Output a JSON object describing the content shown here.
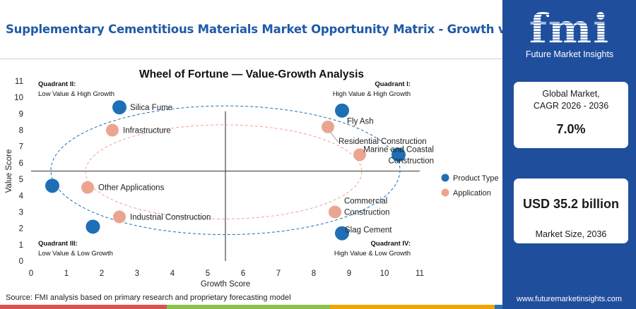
{
  "report_title": "Supplementary Cementitious Materials Market Opportunity Matrix - Growth vs Value",
  "source_text": "Source: FMI analysis based on primary research and proprietary forecasting model",
  "brand": {
    "name": "fmi",
    "tagline": "Future Market Insights",
    "website": "www.futuremarketinsights.com"
  },
  "colors": {
    "primary_blue": "#1f4e9c",
    "title_blue": "#1f5aa6",
    "product_type": "#1e6fb5",
    "application": "#eba58f"
  },
  "stats": {
    "cagr_label_line1": "Global Market,",
    "cagr_label_line2": "CAGR 2026 - 2036",
    "cagr_value": "7.0%",
    "size_value": "USD 35.2 billion",
    "size_label": "Market Size, 2036"
  },
  "bottom_bar_colors": [
    "#d9534f",
    "#8bc34a",
    "#f0a500",
    "#2e6fb5"
  ],
  "chart_data": {
    "type": "scatter",
    "title": "Wheel of Fortune — Value-Growth Analysis",
    "xlabel": "Growth Score",
    "ylabel": "Value Score",
    "xlim": [
      0,
      11
    ],
    "ylim": [
      0,
      11
    ],
    "xticks": [
      0,
      1,
      2,
      3,
      4,
      5,
      6,
      7,
      8,
      9,
      10,
      11
    ],
    "yticks": [
      0,
      1,
      2,
      3,
      4,
      5,
      6,
      7,
      8,
      9,
      10,
      11
    ],
    "divider_x": 5.5,
    "divider_y": 5.5,
    "quadrants": [
      {
        "name": "Quadrant II:",
        "desc": "Low Value & High Growth",
        "position": "top-left"
      },
      {
        "name": "Quadrant I:",
        "desc": "High Value & High Growth",
        "position": "top-right"
      },
      {
        "name": "Quadrant III:",
        "desc": "Low Value & Low Growth",
        "position": "bottom-left"
      },
      {
        "name": "Quadrant IV:",
        "desc": "High Value & Low Growth",
        "position": "bottom-right"
      }
    ],
    "legend": [
      {
        "name": "Product Type",
        "color": "#1e6fb5"
      },
      {
        "name": "Application",
        "color": "#eba58f"
      }
    ],
    "legend_position": "right",
    "series": [
      {
        "name": "Product Type",
        "color": "#1e6fb5",
        "points": [
          {
            "label": [
              "Silica Fume"
            ],
            "x": 2.5,
            "y": 9.4
          },
          {
            "label": [
              "Fly Ash"
            ],
            "x": 8.8,
            "y": 9.2
          },
          {
            "label": [
              "Marine and Coastal",
              "Construction"
            ],
            "x": 10.4,
            "y": 6.5
          },
          {
            "label": [
              ""
            ],
            "x": 0.6,
            "y": 4.6
          },
          {
            "label": [
              ""
            ],
            "x": 1.75,
            "y": 2.1
          },
          {
            "label": [
              "Slag Cement"
            ],
            "x": 8.8,
            "y": 1.7
          }
        ]
      },
      {
        "name": "Application",
        "color": "#eba58f",
        "points": [
          {
            "label": [
              "Infrastructure"
            ],
            "x": 2.3,
            "y": 8.0
          },
          {
            "label": [
              "Residential Construction"
            ],
            "x": 8.4,
            "y": 8.2
          },
          {
            "label": [
              ""
            ],
            "x": 9.3,
            "y": 6.5
          },
          {
            "label": [
              "Other Applications"
            ],
            "x": 1.6,
            "y": 4.5
          },
          {
            "label": [
              "Industrial Construction"
            ],
            "x": 2.5,
            "y": 2.7
          },
          {
            "label": [
              "Commercial",
              "Construction"
            ],
            "x": 8.6,
            "y": 3.0
          }
        ]
      }
    ]
  }
}
